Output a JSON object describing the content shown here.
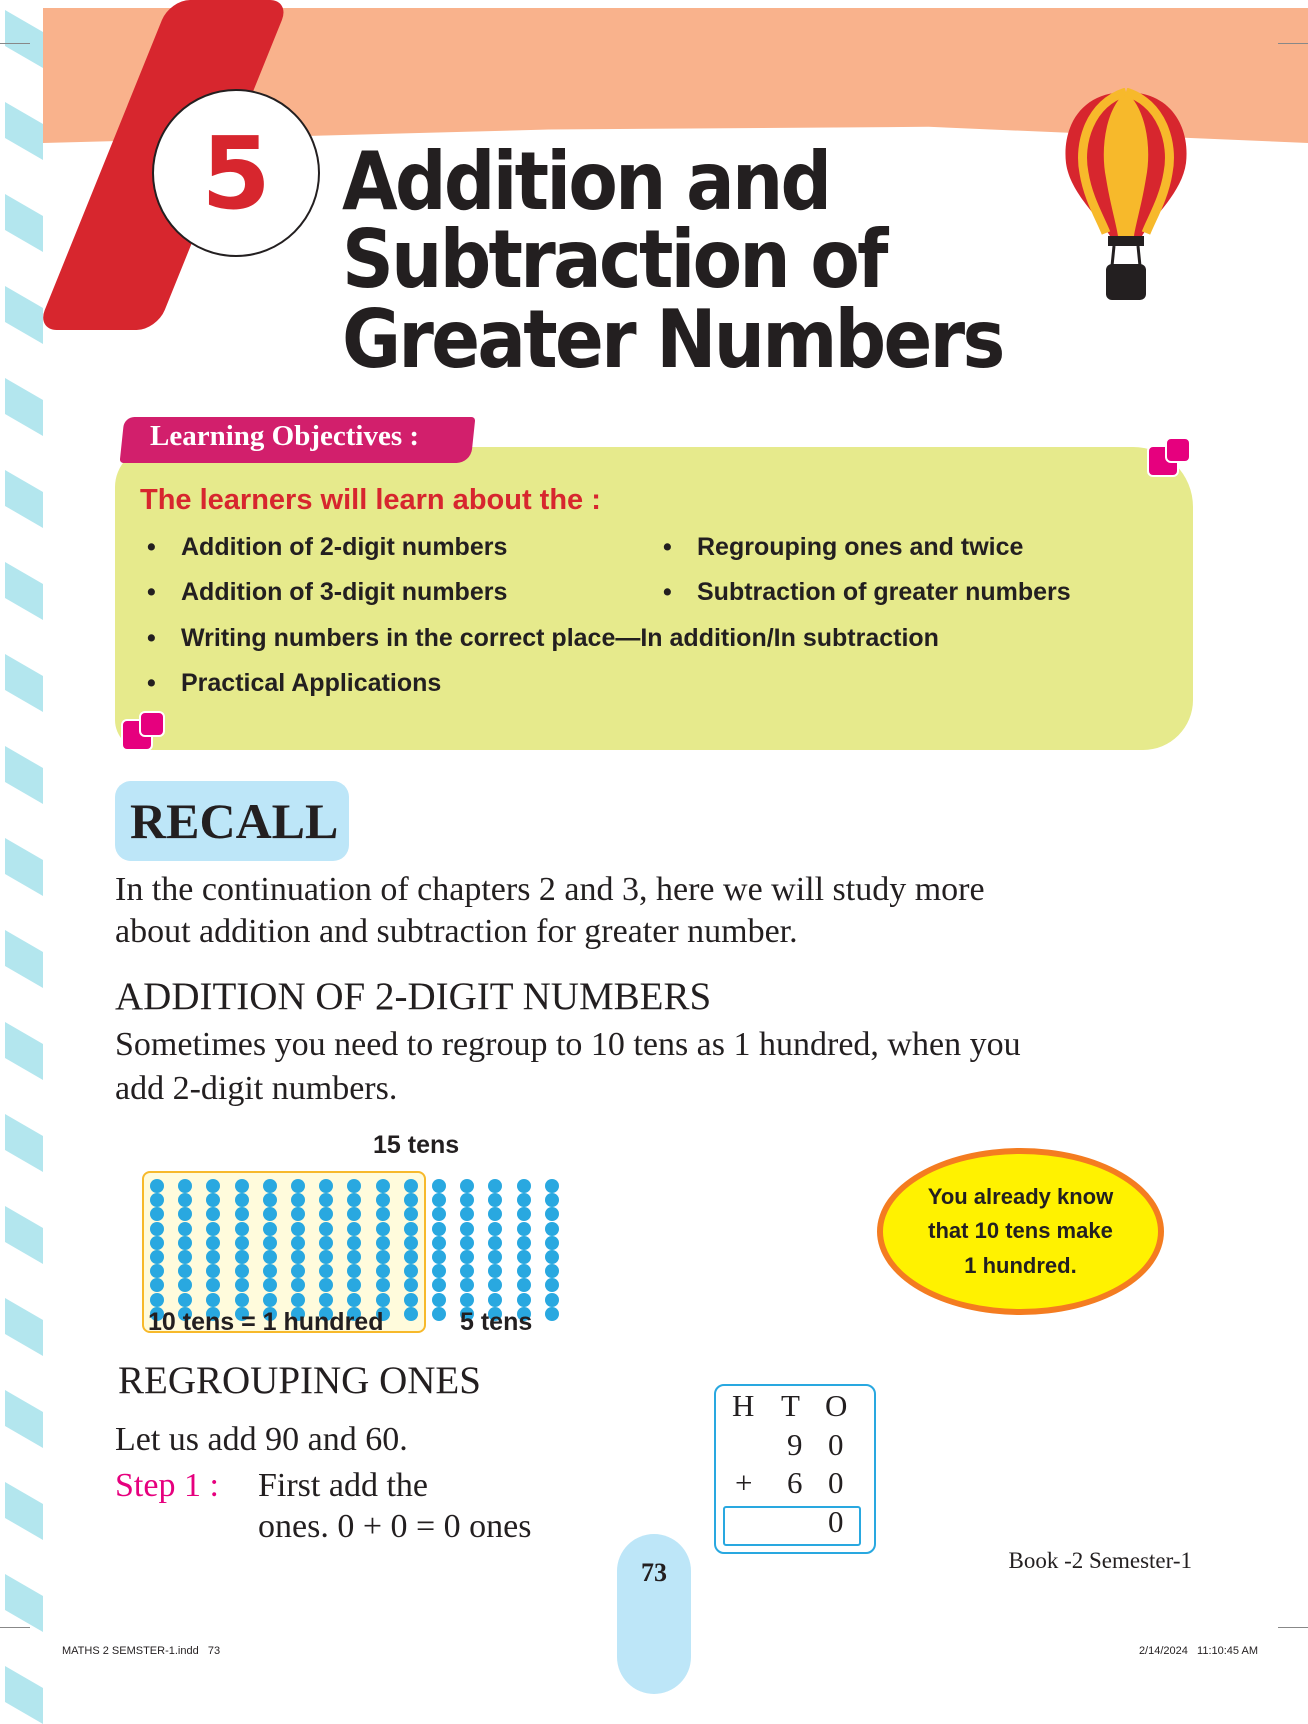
{
  "chapter": {
    "number": "5",
    "title_lines": [
      "Addition and",
      "Subtraction of",
      "Greater Numbers"
    ]
  },
  "objectives": {
    "tag": "Learning Objectives :",
    "intro": "The learners will learn about the :",
    "items": [
      "Addition of 2-digit numbers",
      "Regrouping ones and twice",
      "Addition of 3-digit numbers",
      "Subtraction of greater numbers",
      "Writing numbers in the correct place—In addition/In subtraction",
      "Practical Applications"
    ]
  },
  "recall": {
    "heading": "RECALL",
    "lines": [
      "In the continuation of chapters 2 and 3, here we will study more",
      "about addition and subtraction for greater number."
    ]
  },
  "addition": {
    "heading": "ADDITION OF 2-DIGIT NUMBERS",
    "lines": [
      "Sometimes you need to regroup to 10 tens as 1 hundred, when you",
      "add 2-digit numbers."
    ]
  },
  "figure": {
    "top_label": "15 tens",
    "left_label": "10 tens = 1 hundred",
    "right_label": "5 tens",
    "tens_total": 15,
    "tens_grouped": 10
  },
  "callout": {
    "lines": [
      "You already know",
      "that 10 tens make",
      "1 hundred."
    ]
  },
  "regrouping": {
    "heading": "REGROUPING ONES",
    "intro": "Let us add 90 and 60.",
    "step_label": "Step 1 :",
    "step_lines": [
      "First add the",
      "ones. 0 + 0 = 0 ones"
    ]
  },
  "hto_table": {
    "headers": [
      "H",
      "T",
      "O"
    ],
    "row1": [
      "",
      "9",
      "0"
    ],
    "operator": "+",
    "row2": [
      "",
      "6",
      "0"
    ],
    "result": [
      "",
      "",
      "0"
    ]
  },
  "footer": {
    "page_number": "73",
    "book": "Book -2 Semester-1",
    "file": "MATHS 2 SEMSTER-1.indd   73",
    "timestamp": "2/14/2024   11:10:45 AM"
  },
  "colors": {
    "header_band": "#f9b28c",
    "red": "#d7262e",
    "magenta": "#e6007e",
    "green_blob": "#e6ea8c",
    "recall_box": "#bde6f8",
    "dots": "#29a8e0",
    "callout": "#fff200",
    "callout_border": "#f47c20"
  }
}
